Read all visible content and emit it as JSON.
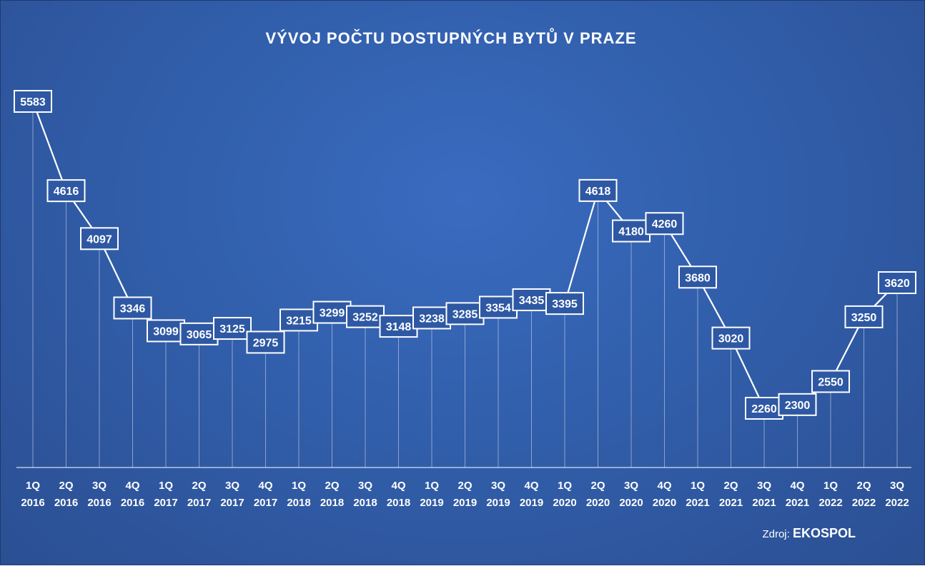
{
  "source": {
    "prefix": "Zdroj:",
    "name": "EKOSPOL"
  },
  "colors": {
    "background": "#3260ad",
    "line": "#ffffff",
    "label_fill": "#2e58a3"
  },
  "chart_data": {
    "type": "line",
    "title": "VÝVOJ POČTU DOSTUPNÝCH BYTŮ V PRAZE",
    "xlabel": "",
    "ylabel": "",
    "grid": false,
    "categories": [
      [
        "1Q",
        "2016"
      ],
      [
        "2Q",
        "2016"
      ],
      [
        "3Q",
        "2016"
      ],
      [
        "4Q",
        "2016"
      ],
      [
        "1Q",
        "2017"
      ],
      [
        "2Q",
        "2017"
      ],
      [
        "3Q",
        "2017"
      ],
      [
        "4Q",
        "2017"
      ],
      [
        "1Q",
        "2018"
      ],
      [
        "2Q",
        "2018"
      ],
      [
        "3Q",
        "2018"
      ],
      [
        "4Q",
        "2018"
      ],
      [
        "1Q",
        "2019"
      ],
      [
        "2Q",
        "2019"
      ],
      [
        "3Q",
        "2019"
      ],
      [
        "4Q",
        "2019"
      ],
      [
        "1Q",
        "2020"
      ],
      [
        "2Q",
        "2020"
      ],
      [
        "3Q",
        "2020"
      ],
      [
        "4Q",
        "2020"
      ],
      [
        "1Q",
        "2021"
      ],
      [
        "2Q",
        "2021"
      ],
      [
        "3Q",
        "2021"
      ],
      [
        "4Q",
        "2021"
      ],
      [
        "1Q",
        "2022"
      ],
      [
        "2Q",
        "2022"
      ],
      [
        "3Q",
        "2022"
      ]
    ],
    "series": [
      {
        "values": [
          5583,
          4616,
          4097,
          3346,
          3099,
          3065,
          3125,
          2975,
          3215,
          3299,
          3252,
          3148,
          3238,
          3285,
          3354,
          3435,
          3395,
          4618,
          4180,
          4260,
          3680,
          3020,
          2260,
          2300,
          2550,
          3250,
          3620
        ]
      }
    ],
    "data_labels": true
  }
}
